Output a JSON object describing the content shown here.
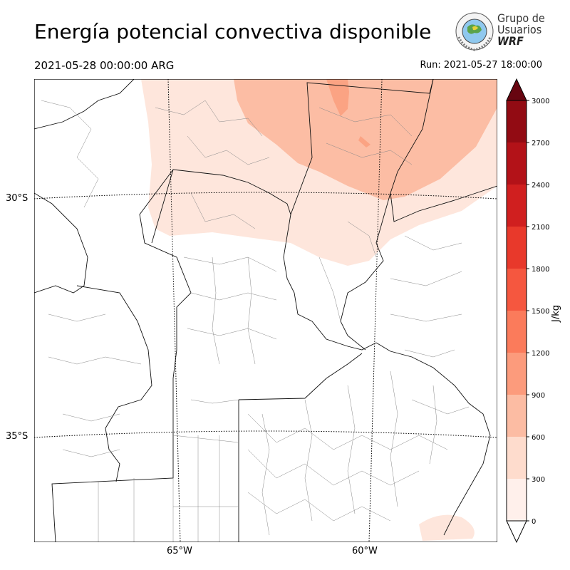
{
  "title": "Energía potencial convectiva disponible",
  "valid_time": "2021-05-28 00:00:00 ARG",
  "run_time": "Run: 2021-05-27 18:00:00",
  "logo": {
    "line1": "Grupo de",
    "line2": "Usuarios",
    "line3": "WRF"
  },
  "map": {
    "lat_labels": [
      "30°S",
      "35°S"
    ],
    "lon_labels": [
      "65°W",
      "60°W"
    ]
  },
  "colorbar": {
    "unit": "J/kg",
    "ticks": [
      "0",
      "300",
      "600",
      "900",
      "1200",
      "1500",
      "1800",
      "2100",
      "2400",
      "2700",
      "3000"
    ],
    "colors": [
      "#fff0eb",
      "#fedccd",
      "#fcbca3",
      "#fc9b7c",
      "#fb7b5b",
      "#f5573f",
      "#e8392b",
      "#d01f1f",
      "#b31218",
      "#920b13",
      "#670510"
    ],
    "extend": "both"
  },
  "colors": {
    "cape_light": "#fee6dc",
    "cape_mid": "#fcbda4",
    "cape_strong": "#fba383"
  }
}
